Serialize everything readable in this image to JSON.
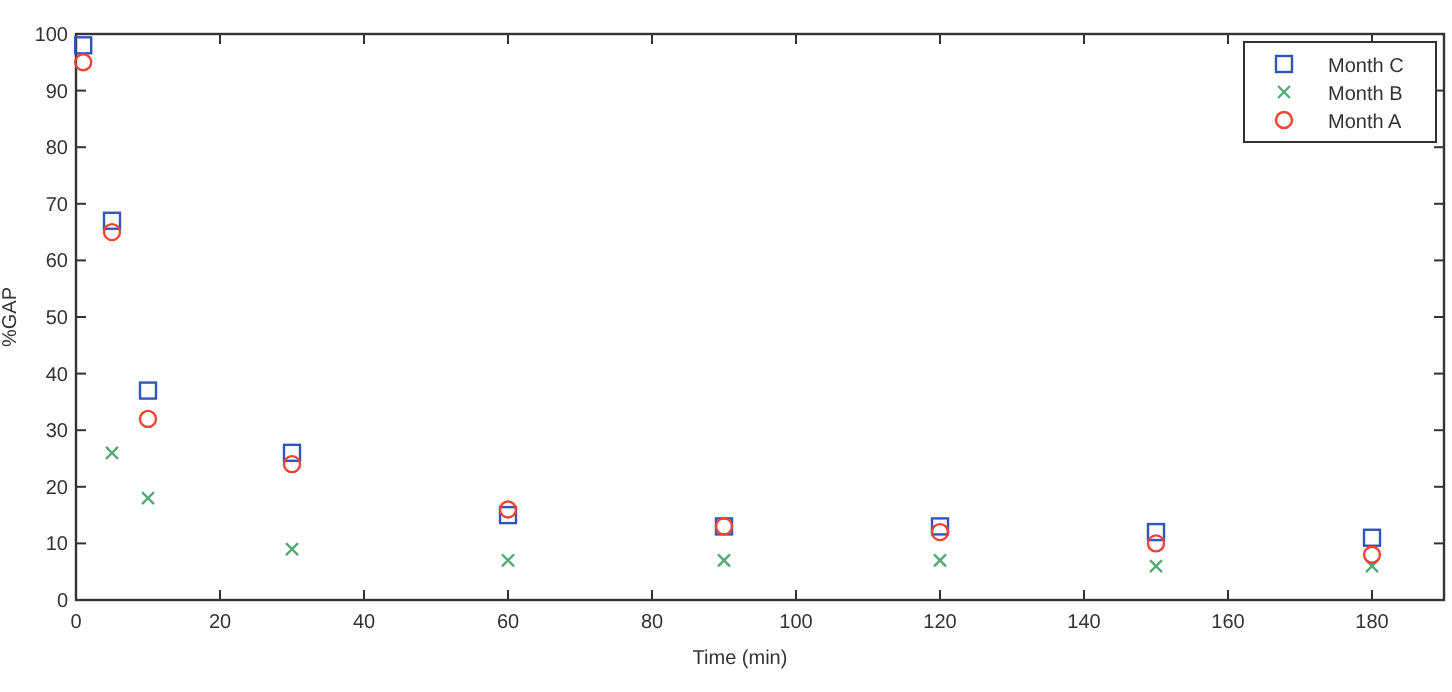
{
  "chart_data": {
    "type": "scatter",
    "xlabel": "Time (min)",
    "ylabel": "%GAP",
    "x": [
      1,
      5,
      10,
      30,
      60,
      90,
      120,
      150,
      180
    ],
    "xlim": [
      0,
      190
    ],
    "xticks": [
      0,
      20,
      40,
      60,
      80,
      100,
      120,
      140,
      160,
      180
    ],
    "ylim": [
      0,
      100
    ],
    "yticks": [
      0,
      10,
      20,
      30,
      40,
      50,
      60,
      70,
      80,
      90,
      100
    ],
    "legend": "top right",
    "grid": false,
    "series": [
      {
        "name": "Month C",
        "color": "#3355bb",
        "marker": "square",
        "values": [
          98,
          67,
          37,
          26,
          15,
          13,
          13,
          12,
          11
        ]
      },
      {
        "name": "Month B",
        "color": "#55aa77",
        "marker": "cross",
        "values": [
          null,
          26,
          18,
          9,
          7,
          7,
          7,
          6,
          6
        ]
      },
      {
        "name": "Month A",
        "color": "#ee4433",
        "marker": "circle",
        "values": [
          95,
          65,
          32,
          24,
          16,
          13,
          12,
          10,
          8
        ]
      }
    ]
  }
}
